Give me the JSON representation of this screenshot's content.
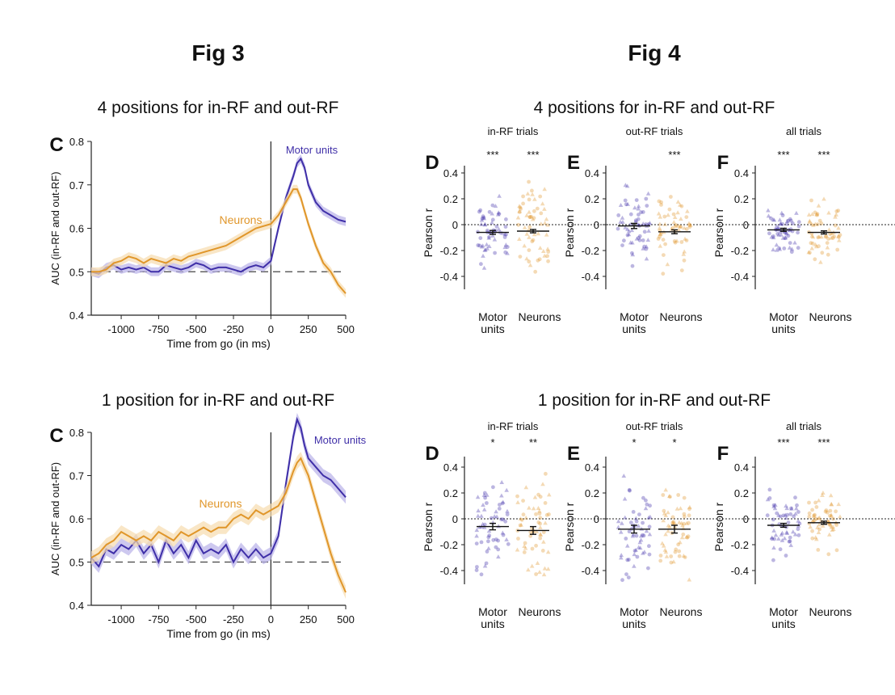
{
  "figure_titles": {
    "left": "Fig 3",
    "right": "Fig 4"
  },
  "row_titles": {
    "left_top": "4 positions for in-RF and out-RF",
    "left_bottom": "1 position for in-RF and out-RF",
    "right_top": "4 positions for in-RF and out-RF",
    "right_bottom": "1 position for in-RF and out-RF"
  },
  "colors": {
    "motor": "#3f2fa8",
    "neurons": "#e0962a",
    "motor_band": "#b8b0e8",
    "neurons_band": "#f6dcae"
  },
  "chart_data": [
    {
      "type": "line",
      "panel_label": "C",
      "title": "",
      "xlabel": "Time from go (in ms)",
      "ylabel": "AUC (in-RF and out-RF)",
      "xlim": [
        -1200,
        500
      ],
      "ylim": [
        0.4,
        0.8
      ],
      "xticks": [
        -1000,
        -750,
        -500,
        -250,
        0,
        250,
        500
      ],
      "yticks": [
        0.4,
        0.5,
        0.6,
        0.7,
        0.8
      ],
      "reference_line": 0.5,
      "vertical_line": 0,
      "series": [
        {
          "name": "Motor units",
          "x": [
            -1200,
            -1150,
            -1100,
            -1050,
            -1000,
            -950,
            -900,
            -850,
            -800,
            -750,
            -700,
            -650,
            -600,
            -550,
            -500,
            -450,
            -400,
            -350,
            -300,
            -250,
            -200,
            -150,
            -100,
            -50,
            0,
            50,
            100,
            150,
            175,
            200,
            225,
            250,
            300,
            350,
            400,
            450,
            500
          ],
          "values": [
            0.5,
            0.495,
            0.51,
            0.515,
            0.505,
            0.51,
            0.505,
            0.51,
            0.5,
            0.5,
            0.515,
            0.51,
            0.505,
            0.51,
            0.52,
            0.515,
            0.505,
            0.51,
            0.51,
            0.505,
            0.5,
            0.51,
            0.515,
            0.51,
            0.525,
            0.6,
            0.67,
            0.72,
            0.75,
            0.76,
            0.74,
            0.7,
            0.66,
            0.64,
            0.63,
            0.62,
            0.615
          ],
          "band": 0.01
        },
        {
          "name": "Neurons",
          "x": [
            -1200,
            -1150,
            -1100,
            -1050,
            -1000,
            -950,
            -900,
            -850,
            -800,
            -750,
            -700,
            -650,
            -600,
            -550,
            -500,
            -450,
            -400,
            -350,
            -300,
            -250,
            -200,
            -150,
            -100,
            -50,
            0,
            50,
            100,
            150,
            175,
            200,
            225,
            250,
            300,
            350,
            400,
            450,
            500
          ],
          "values": [
            0.5,
            0.5,
            0.505,
            0.52,
            0.525,
            0.535,
            0.53,
            0.52,
            0.53,
            0.525,
            0.52,
            0.53,
            0.525,
            0.535,
            0.54,
            0.545,
            0.55,
            0.555,
            0.56,
            0.57,
            0.58,
            0.59,
            0.6,
            0.605,
            0.61,
            0.63,
            0.66,
            0.69,
            0.69,
            0.67,
            0.64,
            0.61,
            0.56,
            0.52,
            0.5,
            0.47,
            0.45
          ],
          "band": 0.01
        }
      ]
    },
    {
      "type": "line",
      "panel_label": "C",
      "title": "",
      "xlabel": "Time from go (in ms)",
      "ylabel": "AUC (in-RF and out-RF)",
      "xlim": [
        -1200,
        500
      ],
      "ylim": [
        0.4,
        0.8
      ],
      "xticks": [
        -1000,
        -750,
        -500,
        -250,
        0,
        250,
        500
      ],
      "yticks": [
        0.4,
        0.5,
        0.6,
        0.7,
        0.8
      ],
      "reference_line": 0.5,
      "vertical_line": 0,
      "series": [
        {
          "name": "Motor units",
          "x": [
            -1200,
            -1150,
            -1100,
            -1050,
            -1000,
            -950,
            -900,
            -850,
            -800,
            -750,
            -700,
            -650,
            -600,
            -550,
            -500,
            -450,
            -400,
            -350,
            -300,
            -250,
            -200,
            -150,
            -100,
            -50,
            0,
            50,
            100,
            150,
            175,
            200,
            225,
            250,
            300,
            350,
            400,
            450,
            500
          ],
          "values": [
            0.51,
            0.49,
            0.53,
            0.52,
            0.54,
            0.53,
            0.55,
            0.52,
            0.54,
            0.5,
            0.55,
            0.52,
            0.54,
            0.51,
            0.55,
            0.52,
            0.53,
            0.52,
            0.54,
            0.5,
            0.53,
            0.51,
            0.53,
            0.51,
            0.52,
            0.56,
            0.68,
            0.79,
            0.83,
            0.81,
            0.77,
            0.74,
            0.72,
            0.7,
            0.69,
            0.67,
            0.65
          ],
          "band": 0.015
        },
        {
          "name": "Neurons",
          "x": [
            -1200,
            -1150,
            -1100,
            -1050,
            -1000,
            -950,
            -900,
            -850,
            -800,
            -750,
            -700,
            -650,
            -600,
            -550,
            -500,
            -450,
            -400,
            -350,
            -300,
            -250,
            -200,
            -150,
            -100,
            -50,
            0,
            50,
            100,
            150,
            175,
            200,
            225,
            250,
            300,
            350,
            400,
            450,
            500
          ],
          "values": [
            0.51,
            0.52,
            0.54,
            0.55,
            0.57,
            0.56,
            0.55,
            0.56,
            0.55,
            0.57,
            0.56,
            0.55,
            0.57,
            0.56,
            0.57,
            0.58,
            0.57,
            0.58,
            0.58,
            0.6,
            0.61,
            0.6,
            0.62,
            0.61,
            0.62,
            0.63,
            0.66,
            0.71,
            0.73,
            0.74,
            0.72,
            0.7,
            0.64,
            0.58,
            0.52,
            0.47,
            0.43
          ],
          "band": 0.015
        }
      ]
    },
    {
      "type": "scatter",
      "row": "4 positions for in-RF and out-RF",
      "ylabel": "Pearson r",
      "ylim": [
        -0.5,
        0.5
      ],
      "yticks": [
        -0.4,
        -0.2,
        0,
        0.2,
        0.4
      ],
      "categories": [
        "Motor units",
        "Neurons"
      ],
      "panels": [
        {
          "panel_label": "D",
          "title": "in-RF trials",
          "significance": [
            "***",
            "***"
          ],
          "means": [
            -0.06,
            -0.05
          ],
          "sem": [
            0.015,
            0.013
          ],
          "spread": [
            [
              -0.42,
              0.22
            ],
            [
              -0.47,
              0.48
            ]
          ]
        },
        {
          "panel_label": "E",
          "title": "out-RF trials",
          "significance": [
            "",
            "***"
          ],
          "means": [
            -0.01,
            -0.055
          ],
          "sem": [
            0.02,
            0.015
          ],
          "spread": [
            [
              -0.4,
              0.37
            ],
            [
              -0.38,
              0.26
            ]
          ]
        },
        {
          "panel_label": "F",
          "title": "all trials",
          "significance": [
            "***",
            "***"
          ],
          "means": [
            -0.04,
            -0.06
          ],
          "sem": [
            0.012,
            0.012
          ],
          "spread": [
            [
              -0.3,
              0.18
            ],
            [
              -0.3,
              0.3
            ]
          ]
        }
      ]
    },
    {
      "type": "scatter",
      "row": "1 position for in-RF and out-RF",
      "ylabel": "Pearson r",
      "ylim": [
        -0.55,
        0.5
      ],
      "yticks": [
        -0.4,
        -0.2,
        0,
        0.2,
        0.4
      ],
      "categories": [
        "Motor units",
        "Neurons"
      ],
      "panels": [
        {
          "panel_label": "D",
          "title": "in-RF trials",
          "significance": [
            "*",
            "**"
          ],
          "means": [
            -0.06,
            -0.09
          ],
          "sem": [
            0.025,
            0.03
          ],
          "spread": [
            [
              -0.5,
              0.5
            ],
            [
              -0.52,
              0.47
            ]
          ]
        },
        {
          "panel_label": "E",
          "title": "out-RF trials",
          "significance": [
            "*",
            "*"
          ],
          "means": [
            -0.08,
            -0.08
          ],
          "sem": [
            0.03,
            0.03
          ],
          "spread": [
            [
              -0.52,
              0.5
            ],
            [
              -0.55,
              0.35
            ]
          ]
        },
        {
          "panel_label": "F",
          "title": "all trials",
          "significance": [
            "***",
            "***"
          ],
          "means": [
            -0.05,
            -0.03
          ],
          "sem": [
            0.015,
            0.012
          ],
          "spread": [
            [
              -0.32,
              0.32
            ],
            [
              -0.32,
              0.25
            ]
          ]
        }
      ]
    }
  ]
}
